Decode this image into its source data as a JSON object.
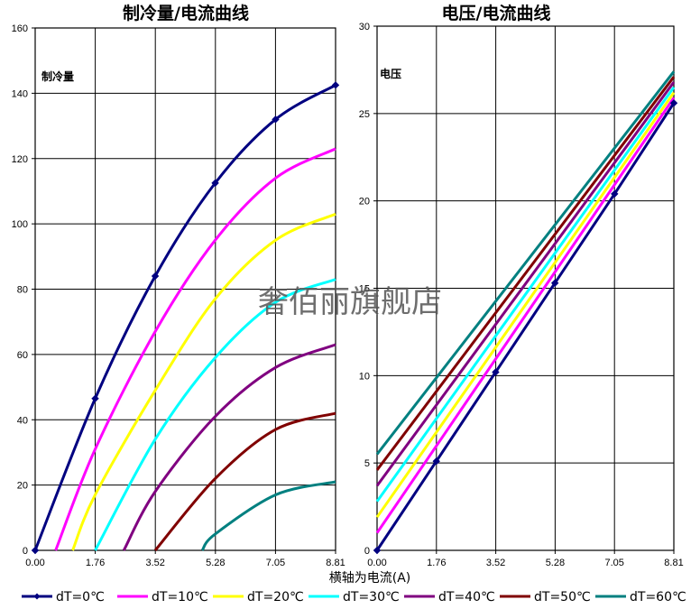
{
  "colors": {
    "dT=0℃": "#000080",
    "dT=10℃": "#FF00FF",
    "dT=20℃": "#FFFF00",
    "dT=30℃": "#00FFFF",
    "dT=40℃": "#800080",
    "dT=50℃": "#800000",
    "dT=60℃": "#008080"
  },
  "watermark": "奢佰丽旗舰店",
  "shared_xlabel": "横轴为电流(A)",
  "legend_position": "bottom",
  "chart_data": [
    {
      "type": "line",
      "title": "制冷量/电流曲线",
      "ylabel": "制冷量",
      "xlabel": "",
      "grid": true,
      "xlim": [
        0,
        8.81
      ],
      "ylim": [
        0,
        160
      ],
      "xticks": [
        "0.00",
        "1.76",
        "3.52",
        "5.28",
        "7.05",
        "8.81"
      ],
      "yticks": [
        "0",
        "20",
        "40",
        "60",
        "80",
        "100",
        "120",
        "140",
        "160"
      ],
      "series": [
        {
          "name": "dT=0℃",
          "markers": true,
          "x": [
            0,
            1.76,
            3.52,
            5.28,
            7.05,
            8.81
          ],
          "y": [
            0,
            46.5,
            84,
            112.5,
            132,
            142.5
          ]
        },
        {
          "name": "dT=10℃",
          "markers": false,
          "x": [
            0.6,
            1.76,
            3.52,
            5.28,
            7.05,
            8.81
          ],
          "y": [
            0,
            31,
            67,
            95,
            114,
            123
          ]
        },
        {
          "name": "dT=20℃",
          "markers": false,
          "x": [
            1.1,
            1.76,
            3.52,
            5.28,
            7.05,
            8.81
          ],
          "y": [
            0,
            17,
            49,
            77,
            95,
            103
          ]
        },
        {
          "name": "dT=30℃",
          "markers": false,
          "x": [
            1.76,
            3.52,
            5.28,
            7.05,
            8.81
          ],
          "y": [
            0,
            34,
            59,
            76,
            83
          ]
        },
        {
          "name": "dT=40℃",
          "markers": false,
          "x": [
            2.6,
            3.52,
            5.28,
            7.05,
            8.81
          ],
          "y": [
            0,
            18,
            41,
            56,
            63
          ]
        },
        {
          "name": "dT=50℃",
          "markers": false,
          "x": [
            3.52,
            5.28,
            7.05,
            8.81
          ],
          "y": [
            0,
            22,
            37,
            42
          ]
        },
        {
          "name": "dT=60℃",
          "markers": false,
          "x": [
            4.9,
            5.28,
            7.05,
            8.81
          ],
          "y": [
            0,
            5,
            17,
            21
          ]
        }
      ]
    },
    {
      "type": "line",
      "title": "电压/电流曲线",
      "ylabel": "电压",
      "xlabel": "",
      "grid": true,
      "xlim": [
        0,
        8.81
      ],
      "ylim": [
        0,
        30
      ],
      "xticks": [
        "0.00",
        "1.76",
        "3.52",
        "5.28",
        "7.05",
        "8.81"
      ],
      "yticks": [
        "0",
        "5",
        "10",
        "15",
        "20",
        "25",
        "30"
      ],
      "series": [
        {
          "name": "dT=0℃",
          "markers": true,
          "x": [
            0,
            1.76,
            3.52,
            5.28,
            7.05,
            8.81
          ],
          "y": [
            0,
            5.1,
            10.2,
            15.3,
            20.4,
            25.6
          ]
        },
        {
          "name": "dT=10℃",
          "markers": false,
          "x": [
            0,
            8.81
          ],
          "y": [
            1.0,
            25.9
          ]
        },
        {
          "name": "dT=20℃",
          "markers": false,
          "x": [
            0,
            8.81
          ],
          "y": [
            1.9,
            26.2
          ]
        },
        {
          "name": "dT=30℃",
          "markers": false,
          "x": [
            0,
            8.81
          ],
          "y": [
            2.8,
            26.5
          ]
        },
        {
          "name": "dT=40℃",
          "markers": false,
          "x": [
            0,
            8.81
          ],
          "y": [
            3.7,
            26.8
          ]
        },
        {
          "name": "dT=50℃",
          "markers": false,
          "x": [
            0,
            8.81
          ],
          "y": [
            4.6,
            27.1
          ]
        },
        {
          "name": "dT=60℃",
          "markers": false,
          "x": [
            0,
            8.81
          ],
          "y": [
            5.5,
            27.4
          ]
        }
      ]
    }
  ]
}
